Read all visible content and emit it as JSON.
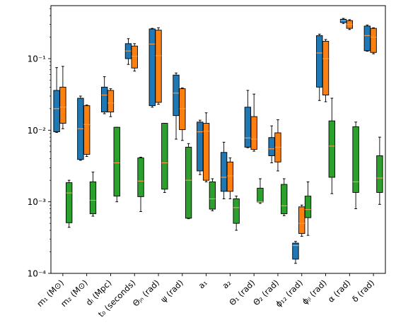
{
  "chart_data": {
    "type": "box",
    "yscale": "log",
    "ylim": [
      0.0001,
      0.55
    ],
    "title": "",
    "xlabel": "",
    "ylabel": "",
    "y_ticks": [
      {
        "value": 0.0001,
        "label": "10⁻⁴"
      },
      {
        "value": 0.001,
        "label": "10⁻³"
      },
      {
        "value": 0.01,
        "label": "10⁻²"
      },
      {
        "value": 0.1,
        "label": "10⁻¹"
      }
    ],
    "categories": [
      "m₁ (M⊙)",
      "m₂ (M⊙)",
      "dₗ (Mpc)",
      "t₀ (seconds)",
      "Θⱼₙ (rad)",
      "ψ (rad)",
      "a₁",
      "a₂",
      "Θ₁ (rad)",
      "Θ₂ (rad)",
      "ϕ₁₂ (rad)",
      "ϕⱼₗ (rad)",
      "α (rad)",
      "δ (rad)"
    ],
    "series": [
      {
        "color": "#1f77b4",
        "boxes": [
          {
            "whislo": 0.0093,
            "q1": 0.0095,
            "med": 0.02,
            "q3": 0.036,
            "whishi": 0.075
          },
          {
            "whislo": 0.0038,
            "q1": 0.0039,
            "med": 0.0105,
            "q3": 0.028,
            "whishi": 0.03
          },
          {
            "whislo": 0.017,
            "q1": 0.018,
            "med": 0.031,
            "q3": 0.04,
            "whishi": 0.056
          },
          {
            "whislo": 0.083,
            "q1": 0.1,
            "med": 0.128,
            "q3": 0.162,
            "whishi": 0.19
          },
          {
            "whislo": 0.021,
            "q1": 0.022,
            "med": 0.16,
            "q3": 0.26,
            "whishi": 0.265
          },
          {
            "whislo": 0.0075,
            "q1": 0.016,
            "med": 0.033,
            "q3": 0.059,
            "whishi": 0.063
          },
          {
            "whislo": 0.0024,
            "q1": 0.0027,
            "med": 0.0095,
            "q3": 0.013,
            "whishi": 0.0138
          },
          {
            "whislo": 0.0011,
            "q1": 0.0014,
            "med": 0.0022,
            "q3": 0.0049,
            "whishi": 0.0068
          },
          {
            "whislo": 0.0057,
            "q1": 0.0058,
            "med": 0.0078,
            "q3": 0.021,
            "whishi": 0.036
          },
          {
            "whislo": 0.0035,
            "q1": 0.0044,
            "med": 0.0055,
            "q3": 0.0079,
            "whishi": 0.0115
          },
          {
            "whislo": 0.000138,
            "q1": 0.000158,
            "med": 0.000245,
            "q3": 0.000265,
            "whishi": 0.00028
          },
          {
            "whislo": 0.026,
            "q1": 0.04,
            "med": 0.12,
            "q3": 0.21,
            "whishi": 0.22
          },
          {
            "whislo": 0.31,
            "q1": 0.32,
            "med": 0.338,
            "q3": 0.355,
            "whishi": 0.365
          },
          {
            "whislo": 0.127,
            "q1": 0.129,
            "med": 0.21,
            "q3": 0.285,
            "whishi": 0.295
          }
        ]
      },
      {
        "color": "#ff7f0e",
        "boxes": [
          {
            "whislo": 0.0105,
            "q1": 0.0125,
            "med": 0.021,
            "q3": 0.04,
            "whishi": 0.078
          },
          {
            "whislo": 0.0043,
            "q1": 0.0046,
            "med": 0.012,
            "q3": 0.022,
            "whishi": 0.0225
          },
          {
            "whislo": 0.0155,
            "q1": 0.018,
            "med": 0.024,
            "q3": 0.036,
            "whishi": 0.038
          },
          {
            "whislo": 0.067,
            "q1": 0.074,
            "med": 0.108,
            "q3": 0.15,
            "whishi": 0.162
          },
          {
            "whislo": 0.023,
            "q1": 0.0245,
            "med": 0.11,
            "q3": 0.25,
            "whishi": 0.27
          },
          {
            "whislo": 0.0072,
            "q1": 0.0102,
            "med": 0.02,
            "q3": 0.038,
            "whishi": 0.039
          },
          {
            "whislo": 0.0019,
            "q1": 0.002,
            "med": 0.0097,
            "q3": 0.0125,
            "whishi": 0.0175
          },
          {
            "whislo": 0.0011,
            "q1": 0.0014,
            "med": 0.0023,
            "q3": 0.0036,
            "whishi": 0.0041
          },
          {
            "whislo": 0.0051,
            "q1": 0.0054,
            "med": 0.0075,
            "q3": 0.0155,
            "whishi": 0.032
          },
          {
            "whislo": 0.0027,
            "q1": 0.0036,
            "med": 0.0058,
            "q3": 0.0092,
            "whishi": 0.014
          },
          {
            "whislo": 0.00033,
            "q1": 0.00036,
            "med": 0.0005,
            "q3": 0.00085,
            "whishi": 0.0009
          },
          {
            "whislo": 0.025,
            "q1": 0.031,
            "med": 0.1,
            "q3": 0.175,
            "whishi": 0.185
          },
          {
            "whislo": 0.255,
            "q1": 0.265,
            "med": 0.3,
            "q3": 0.34,
            "whishi": 0.35
          },
          {
            "whislo": 0.117,
            "q1": 0.122,
            "med": 0.2,
            "q3": 0.265,
            "whishi": 0.27
          }
        ]
      },
      {
        "color": "#2ca02c",
        "boxes": [
          {
            "whislo": 0.00044,
            "q1": 0.00051,
            "med": 0.00133,
            "q3": 0.00185,
            "whishi": 0.002
          },
          {
            "whislo": 0.00063,
            "q1": 0.00068,
            "med": 0.00105,
            "q3": 0.0019,
            "whishi": 0.0026
          },
          {
            "whislo": 0.001,
            "q1": 0.0012,
            "med": 0.0035,
            "q3": 0.011,
            "whishi": 0.011
          },
          {
            "whislo": 0.00073,
            "q1": 0.00118,
            "med": 0.00195,
            "q3": 0.0041,
            "whishi": 0.0042
          },
          {
            "whislo": 0.00135,
            "q1": 0.0015,
            "med": 0.0035,
            "q3": 0.0125,
            "whishi": 0.0125
          },
          {
            "whislo": 0.00058,
            "q1": 0.00059,
            "med": 0.002,
            "q3": 0.0058,
            "whishi": 0.0065
          },
          {
            "whislo": 0.00075,
            "q1": 0.00079,
            "med": 0.0011,
            "q3": 0.0019,
            "whishi": 0.0021
          },
          {
            "whislo": 0.0004,
            "q1": 0.0005,
            "med": 0.00083,
            "q3": 0.0011,
            "whishi": 0.0012
          },
          {
            "whislo": 0.00095,
            "q1": 0.00099,
            "med": 0.001,
            "q3": 0.00155,
            "whishi": 0.0021
          },
          {
            "whislo": 0.00064,
            "q1": 0.00068,
            "med": 0.00088,
            "q3": 0.00175,
            "whishi": 0.0021
          },
          {
            "whislo": 0.00034,
            "q1": 0.0006,
            "med": 0.00078,
            "q3": 0.0012,
            "whishi": 0.0019
          },
          {
            "whislo": 0.0013,
            "q1": 0.0022,
            "med": 0.006,
            "q3": 0.0135,
            "whishi": 0.028
          },
          {
            "whislo": 0.0008,
            "q1": 0.00135,
            "med": 0.0019,
            "q3": 0.0112,
            "whishi": 0.013
          },
          {
            "whislo": 0.00092,
            "q1": 0.00135,
            "med": 0.00215,
            "q3": 0.0044,
            "whishi": 0.008
          }
        ]
      }
    ],
    "median_color": "#ff9f4a",
    "grid": false,
    "legend": "none"
  }
}
